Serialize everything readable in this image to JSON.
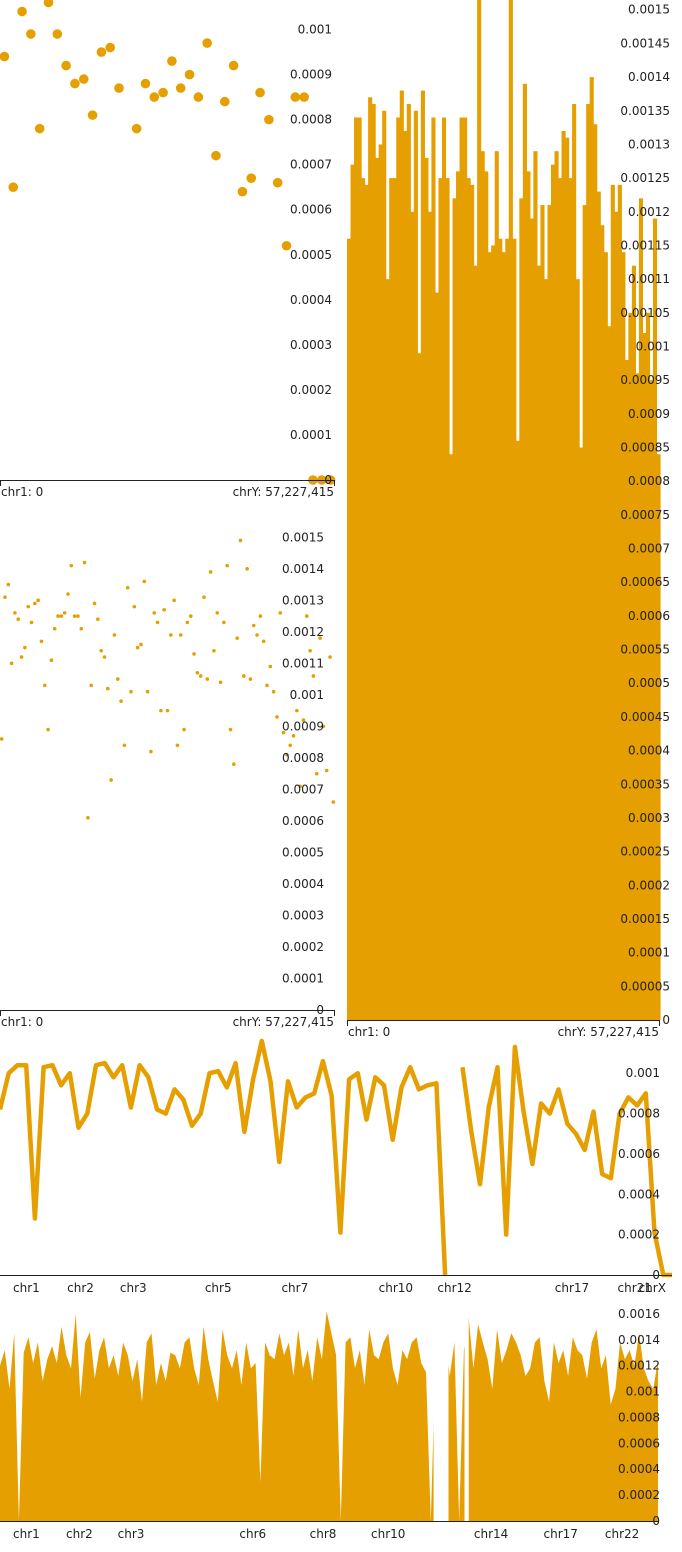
{
  "colors": {
    "accent": "#E69F00",
    "axis": "#222222"
  },
  "chart_data": [
    {
      "id": "scatter-large",
      "type": "scatter",
      "xlim": [
        0,
        3088269832
      ],
      "ylim": [
        0,
        0.00107
      ],
      "yticks": [
        0,
        0.0001,
        0.0002,
        0.0003,
        0.0004,
        0.0005,
        0.0006,
        0.0007,
        0.0008,
        0.0009,
        0.001
      ],
      "x_start_label": "chr1: 0",
      "x_end_label": "chrY: 57,227,415",
      "y": [
        0.00094,
        0.00065,
        0.00104,
        0.00099,
        0.00078,
        0.00106,
        0.00099,
        0.00092,
        0.00088,
        0.00089,
        0.00081,
        0.00095,
        0.00096,
        0.00087,
        0.00108,
        0.00078,
        0.00088,
        0.00085,
        0.00086,
        0.00093,
        0.00087,
        0.0009,
        0.00085,
        0.00097,
        0.00072,
        0.00084,
        0.00092,
        0.00064,
        0.00067,
        0.00086,
        0.0008,
        0.00066,
        0.00052,
        0.00085,
        0.00085,
        0,
        0,
        0
      ]
    },
    {
      "id": "bars-tall",
      "type": "bar",
      "xlim": [
        0,
        3088269832
      ],
      "ylim": [
        0,
        0.00151
      ],
      "yticks": [
        0,
        5e-05,
        0.0001,
        0.00015,
        0.0002,
        0.00025,
        0.0003,
        0.00035,
        0.0004,
        0.00045,
        0.0005,
        0.00055,
        0.0006,
        0.00065,
        0.0007,
        0.00075,
        0.0008,
        0.00085,
        0.0009,
        0.00095,
        0.001,
        0.00105,
        0.0011,
        0.00115,
        0.0012,
        0.00125,
        0.0013,
        0.00135,
        0.0014,
        0.00145,
        0.0015
      ],
      "x_start_label": "chr1: 0",
      "x_end_label": "chrY: 57,227,415",
      "values": [
        0.00116,
        0.00127,
        0.00134,
        0.00134,
        0.00125,
        0.00124,
        0.00137,
        0.00136,
        0.00128,
        0.0013,
        0.00135,
        0.0011,
        0.00125,
        0.00125,
        0.00134,
        0.00138,
        0.00132,
        0.00136,
        0.0012,
        0.00135,
        0.00099,
        0.00138,
        0.00128,
        0.0012,
        0.00134,
        0.00108,
        0.00125,
        0.00134,
        0.00125,
        0.00084,
        0.00122,
        0.00126,
        0.00134,
        0.00134,
        0.00125,
        0.00124,
        0.00112,
        0.00155,
        0.00129,
        0.00126,
        0.00114,
        0.00115,
        0.00129,
        0.00116,
        0.00114,
        0.00116,
        0.00152,
        0.00116,
        0.00086,
        0.00122,
        0.00139,
        0.00126,
        0.00119,
        0.00129,
        0.00112,
        0.00121,
        0.0011,
        0.00121,
        0.00127,
        0.00129,
        0.00125,
        0.00132,
        0.00131,
        0.00125,
        0.00136,
        0.0011,
        0.00085,
        0.00121,
        0.00136,
        0.0014,
        0.00133,
        0.00123,
        0.00118,
        0.00114,
        0.00103,
        0.00124,
        0.0012,
        0.00124,
        0.00114,
        0.00098,
        0.00105,
        0.00112,
        0.00096,
        0.00122,
        0.00102,
        0.00105,
        0.00095,
        0.00119,
        0.00084
      ]
    },
    {
      "id": "scatter-small",
      "type": "scatter",
      "xlim": [
        0,
        3088269832
      ],
      "ylim": [
        0,
        0.00152
      ],
      "yticks": [
        0,
        0.0001,
        0.0002,
        0.0003,
        0.0004,
        0.0005,
        0.0006,
        0.0007,
        0.0008,
        0.0009,
        0.001,
        0.0011,
        0.0012,
        0.0013,
        0.0014,
        0.0015
      ],
      "x_start_label": "chr1: 0",
      "x_end_label": "chrY: 57,227,415",
      "y": [
        0.00086,
        0.00131,
        0.00135,
        0.0011,
        0.00126,
        0.00124,
        0.00112,
        0.00115,
        0.00128,
        0.00123,
        0.00129,
        0.0013,
        0.00117,
        0.00103,
        0.00089,
        0.00111,
        0.00121,
        0.00125,
        0.00125,
        0.00126,
        0.00132,
        0.00141,
        0.00125,
        0.00125,
        0.00121,
        0.00142,
        0.00061,
        0.00103,
        0.00129,
        0.00124,
        0.00114,
        0.00112,
        0.00102,
        0.00073,
        0.00119,
        0.00105,
        0.00098,
        0.00084,
        0.00134,
        0.00101,
        0.00128,
        0.00115,
        0.00116,
        0.00136,
        0.00101,
        0.00082,
        0.00126,
        0.00123,
        0.00095,
        0.00127,
        0.00095,
        0.00119,
        0.0013,
        0.00084,
        0.00119,
        0.00089,
        0.00123,
        0.00125,
        0.00113,
        0.00107,
        0.00106,
        0.00131,
        0.00105,
        0.00139,
        0.00114,
        0.00126,
        0.00104,
        0.00123,
        0.00141,
        0.00089,
        0.00078,
        0.00118,
        0.00149,
        0.00106,
        0.0014,
        0.00105,
        0.00122,
        0.00119,
        0.00125,
        0.00117,
        0.00103,
        0.00109,
        0.00101,
        0.00093,
        0.00126,
        0.00088,
        0.00081,
        0.00084,
        0.00087,
        0.00095,
        0.00071,
        0.00092,
        0.00125,
        0.00114,
        0.00106,
        0.00075,
        0.00118,
        0.0009,
        0.00076,
        0.00112,
        0.00066
      ]
    },
    {
      "id": "line-wide",
      "type": "line",
      "xlim": [
        0,
        3088269832
      ],
      "ylim": [
        0,
        0.00113
      ],
      "yticks": [
        0,
        0.0002,
        0.0004,
        0.0006,
        0.0008,
        0.001
      ],
      "chrom_labels": [
        {
          "label": "chr1",
          "x": 0
        },
        {
          "label": "chr2",
          "x": 248956422
        },
        {
          "label": "chr3",
          "x": 491149951
        },
        {
          "label": "chr5",
          "x": 881626700
        },
        {
          "label": "chr7",
          "x": 1233657027
        },
        {
          "label": "chr10",
          "x": 1680373143
        },
        {
          "label": "chr12",
          "x": 1950251425
        },
        {
          "label": "chr17",
          "x": 2489786036
        },
        {
          "label": "chr21",
          "x": 2778052000
        },
        {
          "label": "chrX",
          "x": 2875001522
        }
      ],
      "y": [
        0.00082,
        0.001,
        0.00104,
        0.00104,
        0.00028,
        0.00103,
        0.00104,
        0.00094,
        0.001,
        0.00073,
        0.0008,
        0.00104,
        0.00105,
        0.00098,
        0.00104,
        0.00083,
        0.00104,
        0.00098,
        0.00082,
        0.0008,
        0.00092,
        0.00087,
        0.00074,
        0.0008,
        0.001,
        0.00101,
        0.00093,
        0.00105,
        0.00071,
        0.00097,
        0.00116,
        0.00096,
        0.00056,
        0.00096,
        0.00083,
        0.00088,
        0.0009,
        0.00106,
        0.00089,
        0.00021,
        0.00097,
        0.001,
        0.00077,
        0.00098,
        0.00094,
        0.00067,
        0.00093,
        0.00103,
        0.00092,
        0.00094,
        0.00095,
        0,
        null,
        0.00103,
        0.00071,
        0.00045,
        0.00083,
        0.00103,
        0.0002,
        0.00113,
        0.00081,
        0.00055,
        0.00085,
        0.0008,
        0.00092,
        0.00075,
        0.0007,
        0.00062,
        0.00081,
        0.0005,
        0.00048,
        0.0008,
        0.00088,
        0.00084,
        0.0009,
        0.00021,
        0,
        0
      ]
    },
    {
      "id": "area-wide",
      "type": "area",
      "xlim": [
        0,
        3088269832
      ],
      "ylim": [
        0,
        0.00163
      ],
      "yticks": [
        0,
        0.0002,
        0.0004,
        0.0006,
        0.0008,
        0.001,
        0.0012,
        0.0014,
        0.0016
      ],
      "chrom_labels": [
        {
          "label": "chr1",
          "x": 0
        },
        {
          "label": "chr2",
          "x": 248956422
        },
        {
          "label": "chr3",
          "x": 491149951
        },
        {
          "label": "chr6",
          "x": 1062541960
        },
        {
          "label": "chr8",
          "x": 1392367006
        },
        {
          "label": "chr10",
          "x": 1680373143
        },
        {
          "label": "chr14",
          "x": 2163064838
        },
        {
          "label": "chr17",
          "x": 2489786036
        },
        {
          "label": "chr22",
          "x": 2778052000
        }
      ],
      "gaps": [
        [
          2035000000,
          2105000000
        ],
        [
          2180000000,
          2200000000
        ]
      ],
      "y": [
        0.0012,
        0.00132,
        0.00102,
        0.00145,
        0.0,
        0.0013,
        0.00142,
        0.00122,
        0.00138,
        0.00108,
        0.00125,
        0.00135,
        0.00122,
        0.0015,
        0.00128,
        0.00118,
        0.0016,
        0.00095,
        0.00138,
        0.00146,
        0.0011,
        0.00132,
        0.00142,
        0.00118,
        0.00128,
        0.00112,
        0.00138,
        0.00128,
        0.00108,
        0.00125,
        0.00092,
        0.00138,
        0.00145,
        0.00105,
        0.00122,
        0.00108,
        0.0013,
        0.00128,
        0.00118,
        0.00138,
        0.00142,
        0.00118,
        0.00105,
        0.0015,
        0.00125,
        0.00108,
        0.00092,
        0.00148,
        0.00128,
        0.00118,
        0.00132,
        0.00105,
        0.00138,
        0.00118,
        0.00122,
        0.0003,
        0.00138,
        0.00128,
        0.00125,
        0.00145,
        0.00128,
        0.00138,
        0.00112,
        0.00148,
        0.00118,
        0.00132,
        0.00108,
        0.00142,
        0.00125,
        0.00162,
        0.00145,
        0.00128,
        0.0,
        0.00138,
        0.00142,
        0.00118,
        0.00132,
        0.00105,
        0.00148,
        0.00128,
        0.00125,
        0.00138,
        0.00145,
        0.00118,
        0.00105,
        0.00132,
        0.00125,
        0.00138,
        0.00142,
        0.00122,
        0.00115,
        0.0,
        0.00125,
        0.00135,
        0.00145,
        0.00112,
        0.00138,
        0.0,
        0.00132,
        0.00158,
        0.00118,
        0.00152,
        0.00138,
        0.00125,
        0.00102,
        0.00148,
        0.00122,
        0.00132,
        0.00145,
        0.00138,
        0.00128,
        0.00112,
        0.00118,
        0.00138,
        0.00142,
        0.00108,
        0.00092,
        0.00138,
        0.00122,
        0.00132,
        0.00112,
        0.00142,
        0.00132,
        0.00128,
        0.0011,
        0.00138,
        0.00148,
        0.00118,
        0.00128,
        0.0009,
        0.00102,
        0.00138,
        0.00125,
        0.00132,
        0.0012,
        0.00145,
        0.00118,
        0.00108,
        0.00102,
        0.00125
      ]
    }
  ]
}
